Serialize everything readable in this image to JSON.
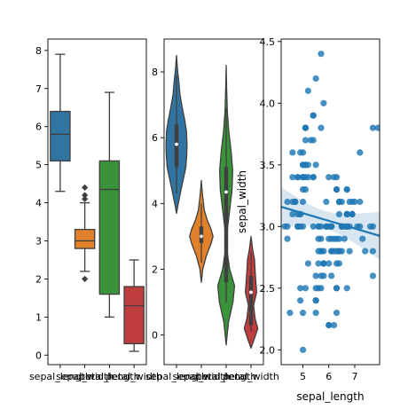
{
  "chart_data": [
    {
      "type": "box",
      "ylim": [
        -0.25,
        8.3
      ],
      "yticks": [
        0,
        1,
        2,
        3,
        4,
        5,
        6,
        7,
        8
      ],
      "categories": [
        "sepal_length",
        "sepal_width",
        "petal_length",
        "petal_width"
      ],
      "colors": [
        "#3274a1",
        "#e1812c",
        "#3a923a",
        "#c03d3e"
      ],
      "boxes": [
        {
          "whislo": 4.3,
          "q1": 5.1,
          "med": 5.8,
          "q3": 6.4,
          "whishi": 7.9,
          "fliers": []
        },
        {
          "whislo": 2.2,
          "q1": 2.8,
          "med": 3.0,
          "q3": 3.3,
          "whishi": 4.0,
          "fliers": [
            4.4,
            4.2,
            4.1,
            2.0
          ]
        },
        {
          "whislo": 1.0,
          "q1": 1.6,
          "med": 4.35,
          "q3": 5.1,
          "whishi": 6.9,
          "fliers": []
        },
        {
          "whislo": 0.1,
          "q1": 0.3,
          "med": 1.3,
          "q3": 1.8,
          "whishi": 2.5,
          "fliers": []
        }
      ]
    },
    {
      "type": "violin",
      "ylim": [
        -0.9,
        9.0
      ],
      "yticks": [
        0,
        2,
        4,
        6,
        8
      ],
      "categories": [
        "sepal_length",
        "sepal_width",
        "petal_length",
        "petal_width"
      ],
      "colors": [
        "#3274a1",
        "#e1812c",
        "#3a923a",
        "#c03d3e"
      ],
      "violins": [
        {
          "q1": 5.1,
          "med": 5.8,
          "q3": 6.4,
          "whislo": 4.3,
          "whishi": 7.9,
          "profile": [
            [
              3.7,
              0.0
            ],
            [
              4.0,
              0.15
            ],
            [
              4.4,
              0.38
            ],
            [
              4.8,
              0.62
            ],
            [
              5.1,
              0.8
            ],
            [
              5.5,
              0.88
            ],
            [
              5.8,
              0.9
            ],
            [
              6.2,
              0.85
            ],
            [
              6.5,
              0.72
            ],
            [
              6.9,
              0.5
            ],
            [
              7.3,
              0.3
            ],
            [
              7.7,
              0.2
            ],
            [
              8.1,
              0.08
            ],
            [
              8.5,
              0.0
            ]
          ]
        },
        {
          "q1": 2.8,
          "med": 3.0,
          "q3": 3.3,
          "whislo": 2.2,
          "whishi": 4.0,
          "profile": [
            [
              1.6,
              0.0
            ],
            [
              2.0,
              0.12
            ],
            [
              2.4,
              0.42
            ],
            [
              2.8,
              0.85
            ],
            [
              3.0,
              1.0
            ],
            [
              3.2,
              0.85
            ],
            [
              3.5,
              0.5
            ],
            [
              3.8,
              0.25
            ],
            [
              4.2,
              0.12
            ],
            [
              4.5,
              0.04
            ],
            [
              4.7,
              0.0
            ]
          ]
        },
        {
          "q1": 1.6,
          "med": 4.35,
          "q3": 5.1,
          "whislo": 1.0,
          "whishi": 6.9,
          "profile": [
            [
              -0.3,
              0.0
            ],
            [
              0.4,
              0.2
            ],
            [
              1.0,
              0.58
            ],
            [
              1.5,
              0.72
            ],
            [
              2.0,
              0.3
            ],
            [
              2.6,
              0.06
            ],
            [
              3.2,
              0.1
            ],
            [
              3.8,
              0.3
            ],
            [
              4.4,
              0.5
            ],
            [
              5.0,
              0.56
            ],
            [
              5.6,
              0.42
            ],
            [
              6.2,
              0.22
            ],
            [
              6.8,
              0.1
            ],
            [
              7.5,
              0.04
            ],
            [
              8.2,
              0.0
            ]
          ]
        },
        {
          "q1": 0.3,
          "med": 1.3,
          "q3": 1.8,
          "whislo": 0.1,
          "whishi": 2.5,
          "profile": [
            [
              -0.4,
              0.0
            ],
            [
              -0.1,
              0.3
            ],
            [
              0.2,
              0.58
            ],
            [
              0.5,
              0.35
            ],
            [
              0.9,
              0.22
            ],
            [
              1.3,
              0.48
            ],
            [
              1.6,
              0.42
            ],
            [
              1.9,
              0.36
            ],
            [
              2.3,
              0.3
            ],
            [
              2.6,
              0.14
            ],
            [
              3.0,
              0.0
            ]
          ]
        }
      ]
    },
    {
      "type": "scatter",
      "xlabel": "sepal_length",
      "ylabel": "sepal_width",
      "xlim": [
        4.16,
        7.96
      ],
      "ylim": [
        1.88,
        4.52
      ],
      "xticks": [
        5,
        6,
        7
      ],
      "yticks": [
        2.0,
        2.5,
        3.0,
        3.5,
        4.0,
        4.5
      ],
      "ytick_labels": [
        "2.0",
        "2.5",
        "3.0",
        "3.5",
        "4.0",
        "4.5"
      ],
      "color": "#1f77b4",
      "regression": {
        "intercept": 3.418,
        "slope": -0.062
      },
      "points": [
        [
          5.1,
          3.5
        ],
        [
          4.9,
          3.0
        ],
        [
          4.7,
          3.2
        ],
        [
          4.6,
          3.1
        ],
        [
          5.0,
          3.6
        ],
        [
          5.4,
          3.9
        ],
        [
          4.6,
          3.4
        ],
        [
          5.0,
          3.4
        ],
        [
          4.4,
          2.9
        ],
        [
          4.9,
          3.1
        ],
        [
          5.4,
          3.7
        ],
        [
          4.8,
          3.4
        ],
        [
          4.8,
          3.0
        ],
        [
          4.3,
          3.0
        ],
        [
          5.8,
          4.0
        ],
        [
          5.7,
          4.4
        ],
        [
          5.4,
          3.9
        ],
        [
          5.1,
          3.5
        ],
        [
          5.7,
          3.8
        ],
        [
          5.1,
          3.8
        ],
        [
          5.4,
          3.4
        ],
        [
          5.1,
          3.7
        ],
        [
          4.6,
          3.6
        ],
        [
          5.1,
          3.3
        ],
        [
          4.8,
          3.4
        ],
        [
          5.0,
          3.0
        ],
        [
          5.0,
          3.4
        ],
        [
          5.2,
          3.5
        ],
        [
          5.2,
          3.4
        ],
        [
          4.7,
          3.2
        ],
        [
          4.8,
          3.1
        ],
        [
          5.4,
          3.4
        ],
        [
          5.2,
          4.1
        ],
        [
          5.5,
          4.2
        ],
        [
          4.9,
          3.1
        ],
        [
          5.0,
          3.2
        ],
        [
          5.5,
          3.5
        ],
        [
          4.9,
          3.6
        ],
        [
          4.4,
          3.0
        ],
        [
          5.1,
          3.4
        ],
        [
          5.0,
          3.5
        ],
        [
          4.5,
          2.3
        ],
        [
          4.4,
          3.2
        ],
        [
          5.0,
          3.5
        ],
        [
          5.1,
          3.8
        ],
        [
          4.8,
          3.0
        ],
        [
          5.1,
          3.8
        ],
        [
          4.6,
          3.2
        ],
        [
          5.3,
          3.7
        ],
        [
          5.0,
          3.3
        ],
        [
          7.0,
          3.2
        ],
        [
          6.4,
          3.2
        ],
        [
          6.9,
          3.1
        ],
        [
          5.5,
          2.3
        ],
        [
          6.5,
          2.8
        ],
        [
          5.7,
          2.8
        ],
        [
          6.3,
          3.3
        ],
        [
          4.9,
          2.4
        ],
        [
          6.6,
          2.9
        ],
        [
          5.2,
          2.7
        ],
        [
          5.0,
          2.0
        ],
        [
          5.9,
          3.0
        ],
        [
          6.0,
          2.2
        ],
        [
          6.1,
          2.9
        ],
        [
          5.6,
          2.9
        ],
        [
          6.7,
          3.1
        ],
        [
          5.6,
          3.0
        ],
        [
          5.8,
          2.7
        ],
        [
          6.2,
          2.2
        ],
        [
          5.6,
          2.5
        ],
        [
          5.9,
          3.2
        ],
        [
          6.1,
          2.8
        ],
        [
          6.3,
          2.5
        ],
        [
          6.1,
          2.8
        ],
        [
          6.4,
          2.9
        ],
        [
          6.6,
          3.0
        ],
        [
          6.8,
          2.8
        ],
        [
          6.7,
          3.0
        ],
        [
          6.0,
          2.9
        ],
        [
          5.7,
          2.6
        ],
        [
          5.5,
          2.4
        ],
        [
          5.5,
          2.4
        ],
        [
          5.8,
          2.7
        ],
        [
          6.0,
          2.7
        ],
        [
          5.4,
          3.0
        ],
        [
          6.0,
          3.4
        ],
        [
          6.7,
          3.1
        ],
        [
          6.3,
          2.3
        ],
        [
          5.6,
          3.0
        ],
        [
          5.5,
          2.5
        ],
        [
          5.5,
          2.6
        ],
        [
          6.1,
          3.0
        ],
        [
          5.8,
          2.6
        ],
        [
          5.0,
          2.3
        ],
        [
          5.6,
          2.7
        ],
        [
          5.7,
          3.0
        ],
        [
          5.7,
          2.9
        ],
        [
          6.2,
          2.9
        ],
        [
          5.1,
          2.5
        ],
        [
          5.7,
          2.8
        ],
        [
          6.3,
          3.3
        ],
        [
          5.8,
          2.7
        ],
        [
          7.1,
          3.0
        ],
        [
          6.3,
          2.9
        ],
        [
          6.5,
          3.0
        ],
        [
          7.6,
          3.0
        ],
        [
          4.9,
          2.5
        ],
        [
          7.3,
          2.9
        ],
        [
          6.7,
          2.5
        ],
        [
          7.2,
          3.6
        ],
        [
          6.5,
          3.2
        ],
        [
          6.4,
          2.7
        ],
        [
          6.8,
          3.0
        ],
        [
          5.7,
          2.5
        ],
        [
          5.8,
          2.8
        ],
        [
          6.4,
          3.2
        ],
        [
          6.5,
          3.0
        ],
        [
          7.7,
          3.8
        ],
        [
          7.7,
          2.6
        ],
        [
          6.0,
          2.2
        ],
        [
          6.9,
          3.2
        ],
        [
          5.6,
          2.8
        ],
        [
          7.7,
          2.8
        ],
        [
          6.3,
          2.7
        ],
        [
          6.7,
          3.3
        ],
        [
          7.2,
          3.2
        ],
        [
          6.2,
          2.8
        ],
        [
          6.1,
          3.0
        ],
        [
          6.4,
          2.8
        ],
        [
          7.2,
          3.0
        ],
        [
          7.4,
          2.8
        ],
        [
          7.9,
          3.8
        ],
        [
          6.4,
          2.8
        ],
        [
          6.3,
          2.8
        ],
        [
          6.1,
          2.6
        ],
        [
          7.7,
          3.0
        ],
        [
          6.3,
          3.4
        ],
        [
          6.4,
          3.1
        ],
        [
          6.0,
          3.0
        ],
        [
          6.9,
          3.1
        ],
        [
          6.7,
          3.1
        ],
        [
          6.9,
          3.1
        ],
        [
          5.8,
          2.7
        ],
        [
          6.8,
          3.2
        ],
        [
          6.7,
          3.3
        ],
        [
          6.7,
          3.0
        ],
        [
          6.3,
          2.5
        ],
        [
          6.5,
          3.0
        ],
        [
          6.2,
          3.4
        ],
        [
          5.9,
          3.0
        ]
      ]
    }
  ]
}
